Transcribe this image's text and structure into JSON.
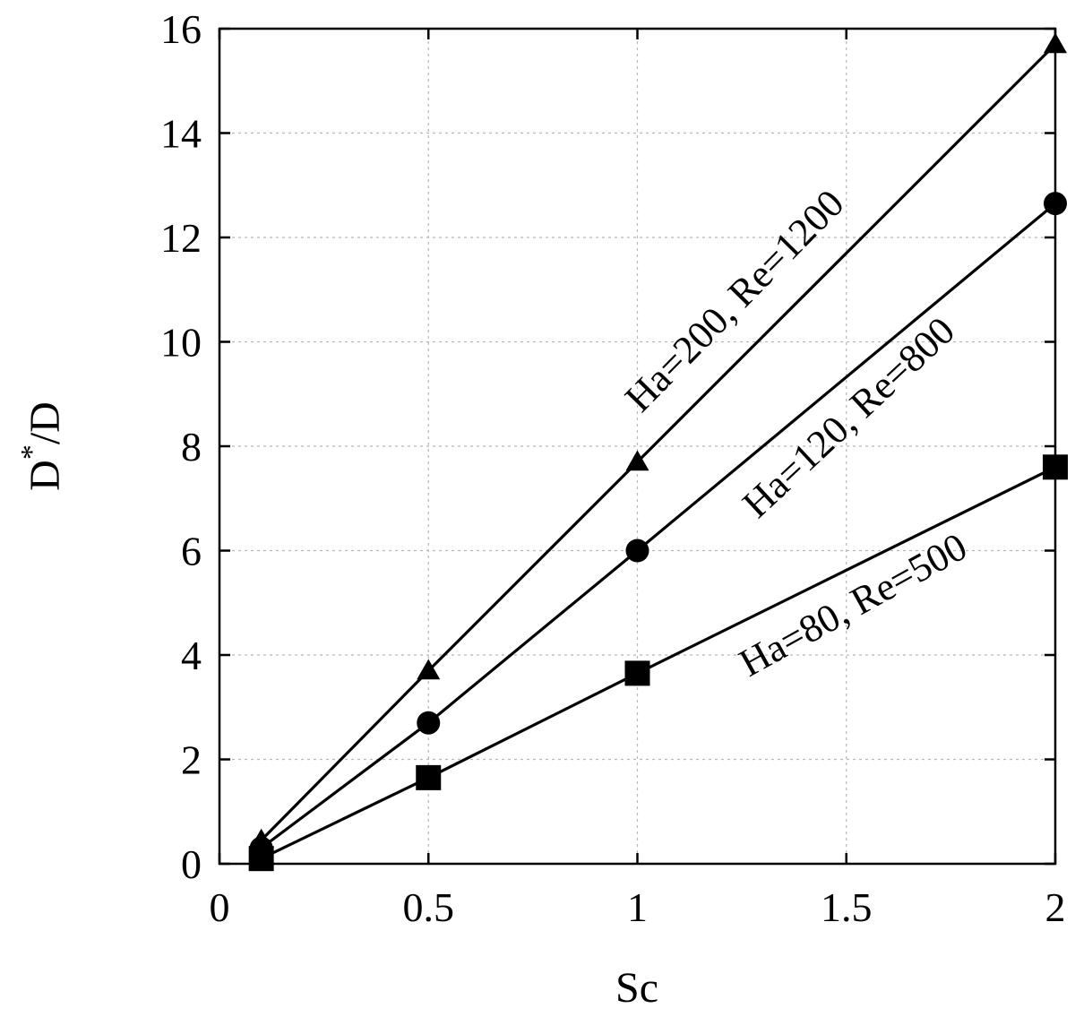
{
  "chart_data": {
    "type": "line",
    "title": "",
    "xlabel": "Sc",
    "ylabel": {
      "base": "D",
      "sup": "*",
      "rest": "/D"
    },
    "xlim": [
      0,
      2
    ],
    "ylim": [
      0,
      16
    ],
    "xticks": [
      0,
      0.5,
      1,
      1.5,
      2
    ],
    "xtick_labels": [
      "0",
      "0.5",
      "1",
      "1.5",
      "2"
    ],
    "yticks": [
      0,
      2,
      4,
      6,
      8,
      10,
      12,
      14,
      16
    ],
    "ytick_labels": [
      "0",
      "2",
      "4",
      "6",
      "8",
      "10",
      "12",
      "14",
      "16"
    ],
    "grid": true,
    "legend": "none",
    "series": [
      {
        "id": "ha200",
        "marker": "triangle",
        "x": [
          0.1,
          0.5,
          1,
          2
        ],
        "values": [
          0.45,
          3.7,
          7.7,
          15.7
        ]
      },
      {
        "id": "ha120",
        "marker": "circle",
        "x": [
          0.1,
          0.5,
          1,
          2
        ],
        "values": [
          0.3,
          2.7,
          6.0,
          12.65
        ]
      },
      {
        "id": "ha80",
        "marker": "square",
        "x": [
          0.1,
          0.5,
          1,
          2
        ],
        "values": [
          0.1,
          1.65,
          3.65,
          7.6
        ]
      }
    ],
    "annotations": [
      {
        "series": "ha200",
        "text": "Ha=200, Re=1200"
      },
      {
        "series": "ha120",
        "text": "Ha=120, Re=800"
      },
      {
        "series": "ha80",
        "text": "Ha=80, Re=500"
      }
    ]
  }
}
